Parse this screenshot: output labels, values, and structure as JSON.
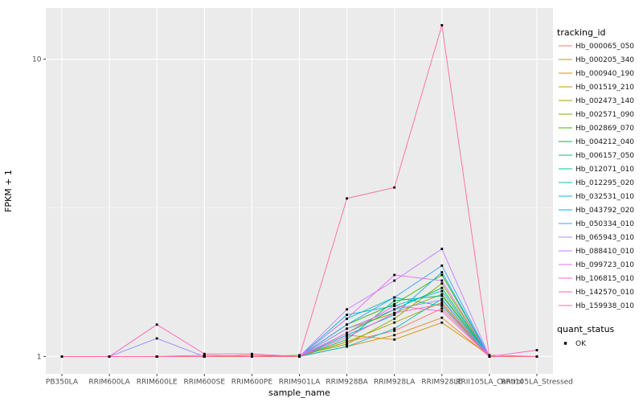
{
  "figure": {
    "background": "#FFFFFF",
    "panel_background": "#EBEBEB",
    "grid_major_color": "#FFFFFF",
    "grid_minor_color": "#F6F6F6",
    "tick_color": "#333333",
    "point_color": "#000000"
  },
  "chart_data": {
    "type": "line",
    "title": "",
    "xlabel": "sample_name",
    "ylabel": "FPKM + 1",
    "y_scale": "log10",
    "y_ticks": [
      1,
      10
    ],
    "y_minor_ticks": [
      3.1623
    ],
    "ylim": [
      0.874,
      14.85
    ],
    "grid": true,
    "legend_position": "right",
    "categories": [
      "PB350LA",
      "RRIM600LA",
      "RRIM600LE",
      "RRIM600SE",
      "RRIM600PE",
      "RRIM901LA",
      "RRIM928BA",
      "RRIM928LA",
      "RRIM928LE",
      "RRII105LA_Control",
      "RRII105LA_Stressed"
    ],
    "series": [
      {
        "name": "Hb_000065_050",
        "color": "#F8766D",
        "values": [
          1.0,
          1.0,
          1.0,
          1.0,
          1.0,
          1.0,
          1.12,
          1.22,
          1.45,
          1.0,
          1.0
        ]
      },
      {
        "name": "Hb_000205_340",
        "color": "#EA8331",
        "values": [
          1.0,
          1.0,
          1.0,
          1.01,
          1.0,
          1.0,
          1.08,
          1.18,
          1.35,
          1.0,
          1.0
        ]
      },
      {
        "name": "Hb_000940_190",
        "color": "#D89000",
        "values": [
          1.0,
          1.0,
          1.0,
          1.0,
          1.0,
          1.0,
          1.18,
          1.14,
          1.3,
          1.01,
          1.0
        ]
      },
      {
        "name": "Hb_001519_210",
        "color": "#C09B00",
        "values": [
          1.0,
          1.0,
          1.0,
          1.0,
          1.01,
          1.0,
          1.12,
          1.3,
          1.52,
          1.0,
          1.0
        ]
      },
      {
        "name": "Hb_002473_140",
        "color": "#A3A500",
        "values": [
          1.0,
          1.0,
          1.0,
          1.0,
          1.0,
          1.0,
          1.24,
          1.4,
          1.62,
          1.0,
          1.0
        ]
      },
      {
        "name": "Hb_002571_090",
        "color": "#7CAE00",
        "values": [
          1.0,
          1.0,
          1.0,
          1.0,
          1.0,
          1.01,
          1.1,
          1.34,
          1.76,
          1.0,
          1.0
        ]
      },
      {
        "name": "Hb_002869_070",
        "color": "#39B600",
        "values": [
          1.0,
          1.0,
          1.0,
          1.0,
          1.0,
          1.0,
          1.28,
          1.5,
          1.88,
          1.0,
          1.0
        ]
      },
      {
        "name": "Hb_004212_040",
        "color": "#00BB4E",
        "values": [
          1.0,
          1.0,
          1.0,
          1.0,
          1.0,
          1.0,
          1.2,
          1.44,
          1.7,
          1.0,
          1.0
        ]
      },
      {
        "name": "Hb_006157_050",
        "color": "#00BF7D",
        "values": [
          1.0,
          1.0,
          1.0,
          1.0,
          1.0,
          1.0,
          1.14,
          1.54,
          1.6,
          1.0,
          1.0
        ]
      },
      {
        "name": "Hb_012071_010",
        "color": "#00C1A3",
        "values": [
          1.0,
          1.0,
          1.0,
          1.0,
          1.0,
          1.0,
          1.34,
          1.58,
          1.48,
          1.0,
          1.0
        ]
      },
      {
        "name": "Hb_012295_020",
        "color": "#00BFC4",
        "values": [
          1.0,
          1.0,
          1.0,
          1.0,
          1.0,
          1.0,
          1.08,
          1.24,
          1.56,
          1.0,
          1.0
        ]
      },
      {
        "name": "Hb_032531_010",
        "color": "#00BAE0",
        "values": [
          1.0,
          1.0,
          1.0,
          1.0,
          1.0,
          1.0,
          1.38,
          1.48,
          1.66,
          1.0,
          1.0
        ]
      },
      {
        "name": "Hb_043792_020",
        "color": "#00B0F6",
        "values": [
          1.0,
          1.0,
          1.0,
          1.0,
          1.0,
          1.0,
          1.18,
          1.38,
          1.92,
          1.0,
          1.0
        ]
      },
      {
        "name": "Hb_050334_010",
        "color": "#35A2FF",
        "values": [
          1.0,
          1.0,
          1.0,
          1.0,
          1.0,
          1.0,
          1.28,
          1.58,
          2.02,
          1.0,
          1.0
        ]
      },
      {
        "name": "Hb_065943_010",
        "color": "#9590FF",
        "values": [
          1.0,
          1.0,
          1.15,
          1.0,
          1.0,
          1.0,
          1.24,
          1.44,
          1.55,
          1.0,
          1.0
        ]
      },
      {
        "name": "Hb_088410_010",
        "color": "#C77CFF",
        "values": [
          1.0,
          1.0,
          1.0,
          1.0,
          1.0,
          1.0,
          1.44,
          1.8,
          2.3,
          1.0,
          1.0
        ]
      },
      {
        "name": "Hb_099723_010",
        "color": "#E76BF3",
        "values": [
          1.0,
          1.0,
          1.0,
          1.0,
          1.0,
          1.0,
          1.34,
          1.88,
          1.8,
          1.0,
          1.0
        ]
      },
      {
        "name": "Hb_106815_010",
        "color": "#FA62DB",
        "values": [
          1.0,
          1.0,
          1.0,
          1.0,
          1.0,
          1.0,
          1.2,
          1.48,
          1.42,
          1.0,
          1.0
        ]
      },
      {
        "name": "Hb_142570_010",
        "color": "#FF62BC",
        "values": [
          1.0,
          1.0,
          1.28,
          1.02,
          1.02,
          1.0,
          1.16,
          1.4,
          1.5,
          1.0,
          1.05
        ]
      },
      {
        "name": "Hb_159938_010",
        "color": "#FF6A98",
        "values": [
          1.0,
          1.0,
          1.0,
          1.0,
          1.0,
          1.0,
          3.4,
          3.7,
          13.0,
          1.0,
          1.0
        ]
      }
    ],
    "legend": {
      "color_title": "tracking_id",
      "shape_title": "quant_status",
      "shape_entries": [
        {
          "label": "OK"
        }
      ]
    }
  }
}
